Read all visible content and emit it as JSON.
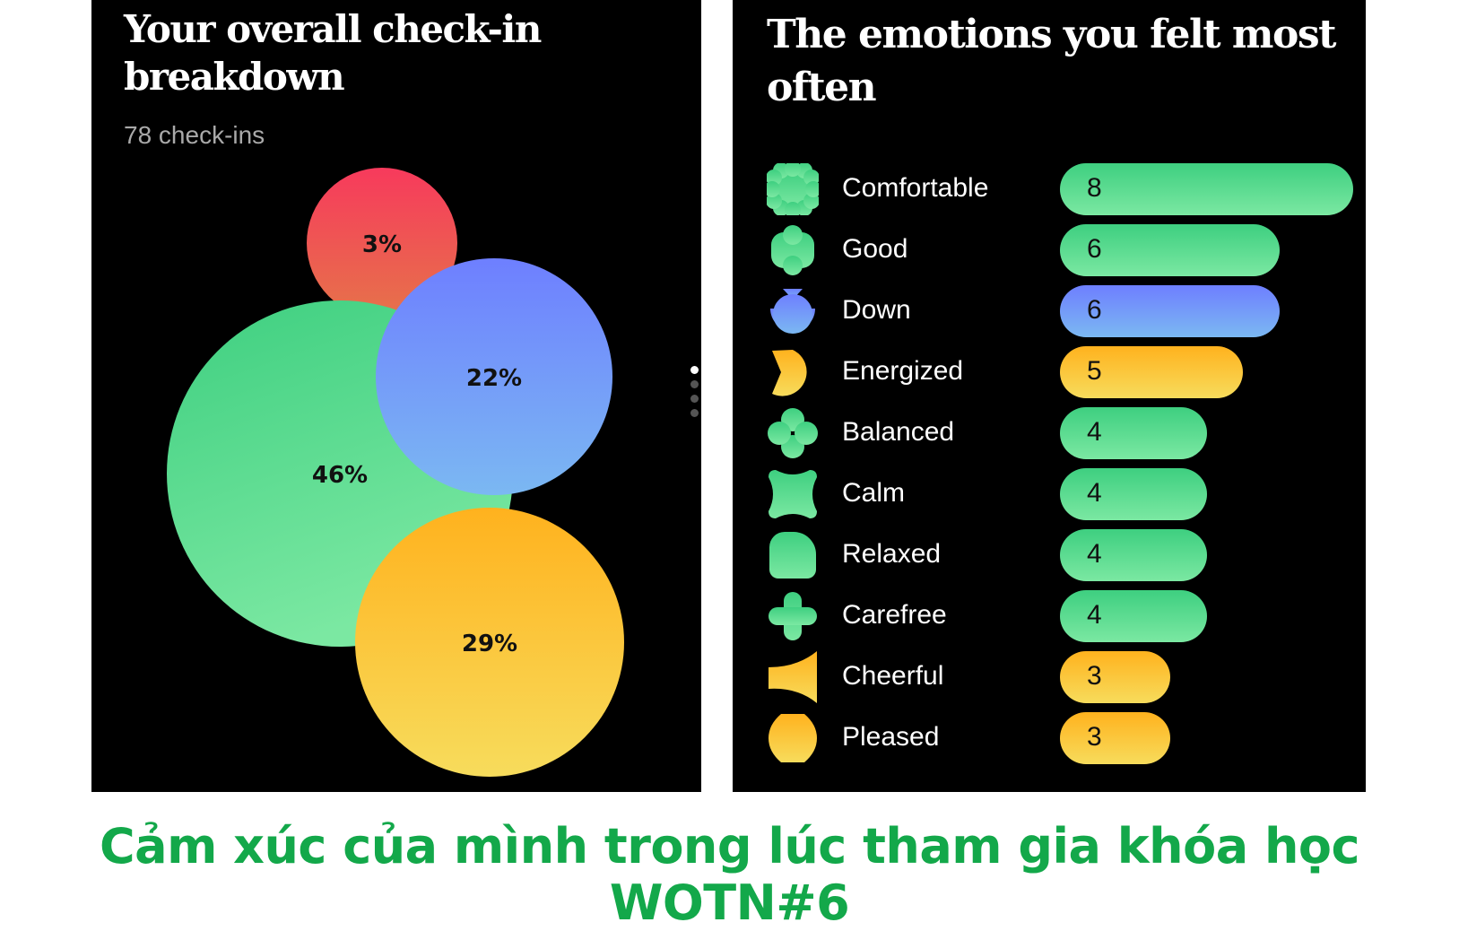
{
  "left": {
    "title": "Your overall check-in breakdown",
    "subtitle": "78 check-ins"
  },
  "right": {
    "title": "The emotions you felt most often"
  },
  "caption": "Cảm xúc của mình trong lúc tham gia khóa học WOTN#6",
  "colors": {
    "green_top": "#3ecf80",
    "green_bottom": "#7be8a2",
    "blue_top": "#6e7fff",
    "blue_bottom": "#7bb8f2",
    "yellow_top": "#ffb21e",
    "yellow_bottom": "#f7dc5c",
    "red_top": "#f73a5c",
    "red_bottom": "#e6734a",
    "caption": "#13a84a"
  },
  "chart_data": [
    {
      "type": "bubble",
      "title": "Your overall check-in breakdown",
      "subtitle": "78 check-ins",
      "bubbles": [
        {
          "label": "46%",
          "value": 46,
          "color": "green"
        },
        {
          "label": "22%",
          "value": 22,
          "color": "blue"
        },
        {
          "label": "29%",
          "value": 29,
          "color": "yellow"
        },
        {
          "label": "3%",
          "value": 3,
          "color": "red"
        }
      ]
    },
    {
      "type": "bar",
      "orientation": "horizontal",
      "title": "The emotions you felt most often",
      "categories": [
        "Comfortable",
        "Good",
        "Down",
        "Energized",
        "Balanced",
        "Calm",
        "Relaxed",
        "Carefree",
        "Cheerful",
        "Pleased"
      ],
      "values": [
        8,
        6,
        6,
        5,
        4,
        4,
        4,
        4,
        3,
        3
      ],
      "bar_colors": [
        "green",
        "green",
        "blue",
        "yellow",
        "green",
        "green",
        "green",
        "green",
        "yellow",
        "yellow"
      ],
      "icons": [
        "scallop-square-icon",
        "flower-blob-icon",
        "bowl-icon",
        "pacman-icon",
        "clover-icon",
        "pinched-square-icon",
        "rounded-square-icon",
        "plus-cross-icon",
        "horn-icon",
        "octagon-blob-icon"
      ],
      "xlim": [
        0,
        8
      ]
    }
  ]
}
